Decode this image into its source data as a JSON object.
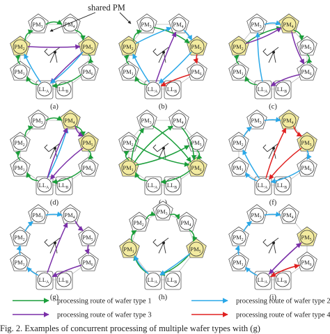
{
  "annotation": "shared PM",
  "module_names": {
    "pm1": "PM",
    "pm2": "PM",
    "pm3": "PM",
    "pm4": "PM",
    "pm5": "PM",
    "pm6": "PM",
    "lla": "LL",
    "llb": "LL",
    "sub": {
      "pm1": "1",
      "pm2": "2",
      "pm3": "3",
      "pm4": "4",
      "pm5": "5",
      "pm6": "6",
      "lla": "A",
      "llb": "B"
    }
  },
  "colors": {
    "wafer1": "#1a9e3a",
    "wafer2": "#2aa8e8",
    "wafer3": "#7a2fa8",
    "wafer4": "#e02020",
    "shared": "#f3eba0",
    "outline": "#555555"
  },
  "panels": [
    {
      "label": "(a)",
      "layout": "ring",
      "shared": [
        "pm2",
        "pm5"
      ],
      "routes": [
        {
          "type": 1,
          "path": [
            "lla",
            "pm1",
            "pm2",
            "pm3",
            "pm4",
            "pm5",
            "pm6",
            "lla"
          ]
        },
        {
          "type": 3,
          "path": [
            "pm2",
            "pm5",
            "lla"
          ]
        },
        {
          "type": 2,
          "path": [
            "lla",
            "pm2"
          ]
        },
        {
          "type": 2,
          "path": [
            "pm5",
            "lla"
          ]
        }
      ]
    },
    {
      "label": "(b)",
      "layout": "ring",
      "shared": [
        "pm2",
        "pm5"
      ],
      "routes": [
        {
          "type": 1,
          "path": [
            "lla",
            "pm1",
            "pm2",
            "pm3",
            "pm5"
          ]
        },
        {
          "type": 3,
          "path": [
            "lla",
            "pm4"
          ]
        },
        {
          "type": 2,
          "path": [
            "lla",
            "pm2",
            "pm4",
            "pm5",
            "lla"
          ]
        },
        {
          "type": 4,
          "path": [
            "pm5",
            "pm6",
            "lla"
          ]
        }
      ]
    },
    {
      "label": "(c)",
      "layout": "ring",
      "shared": [
        "pm2",
        "pm4"
      ],
      "routes": [
        {
          "type": 1,
          "path": [
            "lla",
            "pm1",
            "pm2",
            "pm4",
            "pm5",
            "pm6"
          ]
        },
        {
          "type": 2,
          "path": [
            "lla",
            "pm3",
            "pm4"
          ]
        },
        {
          "type": 3,
          "path": [
            "pm2",
            "pm4",
            "pm6",
            "lla"
          ]
        }
      ]
    },
    {
      "label": "(d)",
      "layout": "ring",
      "shared": [
        "pm4",
        "pm5"
      ],
      "routes": [
        {
          "type": 1,
          "path": [
            "lla",
            "pm1",
            "pm2",
            "pm3",
            "pm4",
            "pm5",
            "pm6",
            "lla"
          ]
        },
        {
          "type": 2,
          "path": [
            "lla",
            "pm4"
          ]
        },
        {
          "type": 3,
          "path": [
            "lla",
            "pm4",
            "pm5",
            "lla"
          ]
        }
      ]
    },
    {
      "label": "(e)",
      "layout": "ring",
      "shared": [
        "pm1",
        "pm6"
      ],
      "routes": [
        {
          "type": 1,
          "path": [
            "lla",
            "pm1",
            "pm3",
            "pm6"
          ]
        },
        {
          "type": 1,
          "path": [
            "pm1",
            "pm4",
            "pm6"
          ]
        },
        {
          "type": 1,
          "path": [
            "pm1",
            "pm5",
            "pm6"
          ]
        },
        {
          "type": 1,
          "path": [
            "pm1",
            "pm2",
            "pm6"
          ]
        },
        {
          "type": 1,
          "path": [
            "pm6",
            "lla"
          ]
        }
      ]
    },
    {
      "label": "(f)",
      "layout": "ring",
      "shared": [
        "pm4",
        "pm5"
      ],
      "routes": [
        {
          "type": 2,
          "path": [
            "lla",
            "pm2",
            "pm3",
            "pm4"
          ]
        },
        {
          "type": 2,
          "path": [
            "lla",
            "pm1"
          ]
        },
        {
          "type": 4,
          "path": [
            "lla",
            "pm4",
            "pm5",
            "lla"
          ]
        },
        {
          "type": 2,
          "path": [
            "pm5",
            "pm6",
            "lla"
          ]
        }
      ]
    },
    {
      "label": "(g)",
      "layout": "ring",
      "shared": [],
      "routes": [
        {
          "type": 2,
          "path": [
            "lla",
            "pm1",
            "pm2",
            "pm3",
            "pm4"
          ]
        },
        {
          "type": 3,
          "path": [
            "lla",
            "pm4",
            "pm5",
            "pm6",
            "lla"
          ]
        }
      ]
    },
    {
      "label": "(h)",
      "layout": "h",
      "shared": [
        "pm1",
        "pm5"
      ],
      "routes": [
        {
          "type": 1,
          "path": [
            "lla",
            "pm1",
            "pm2",
            "pm3",
            "pm4",
            "pm5",
            "lla"
          ]
        },
        {
          "type": 2,
          "path": [
            "lla",
            "pm1"
          ]
        },
        {
          "type": 2,
          "path": [
            "pm5",
            "lla"
          ]
        }
      ]
    },
    {
      "label": "(i)",
      "layout": "ring",
      "shared": [
        "pm5"
      ],
      "routes": [
        {
          "type": 2,
          "path": [
            "lla",
            "pm1",
            "pm2",
            "pm3",
            "pm4"
          ]
        },
        {
          "type": 3,
          "path": [
            "lla",
            "pm5",
            "lla"
          ]
        },
        {
          "type": 4,
          "path": [
            "lla",
            "pm6",
            "lla"
          ]
        }
      ]
    }
  ],
  "legend": [
    {
      "type": 1,
      "label": "processing route of wafer type 1"
    },
    {
      "type": 2,
      "label": "processing route of wafer type 2"
    },
    {
      "type": 3,
      "label": "processing route of wafer type 3"
    },
    {
      "type": 4,
      "label": "processing route of wafer type 4"
    }
  ],
  "caption": "Fig. 2.   Examples of concurrent processing of multiple wafer types with (g)"
}
